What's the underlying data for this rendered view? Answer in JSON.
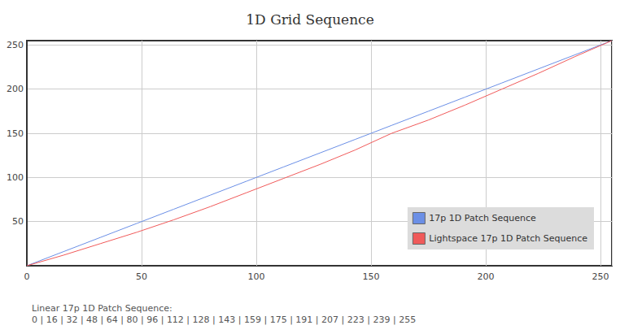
{
  "chart_data": {
    "type": "line",
    "title": "1D Grid Sequence",
    "x": [
      0,
      16,
      32,
      48,
      64,
      80,
      96,
      112,
      128,
      143,
      159,
      175,
      191,
      207,
      223,
      239,
      255
    ],
    "series": [
      {
        "name": "17p 1D Patch Sequence",
        "color": "#6b8fe6",
        "values": [
          0,
          16,
          32,
          48,
          64,
          80,
          96,
          112,
          128,
          143,
          159,
          175,
          191,
          207,
          223,
          239,
          255
        ]
      },
      {
        "name": "Lightspace 17p 1D Patch Sequence",
        "color": "#f05a5a",
        "values": [
          0,
          12,
          25,
          38,
          52,
          67,
          83,
          99,
          115,
          131,
          150,
          165,
          182,
          200,
          218,
          237,
          255
        ]
      }
    ],
    "xlim": [
      0,
      255
    ],
    "xticks": [
      0,
      50,
      100,
      150,
      200,
      250
    ],
    "ylim": [
      0,
      255
    ],
    "yticks": [
      50,
      100,
      150,
      200,
      250
    ],
    "grid": true,
    "legend": "lower right",
    "annotations": [
      "Linear 17p 1D Patch Sequence:",
      "0 | 16 | 32 | 48 | 64 | 80 | 96 | 112 | 128 | 143 | 159 | 175 | 191 | 207 | 223 | 239 | 255"
    ]
  }
}
